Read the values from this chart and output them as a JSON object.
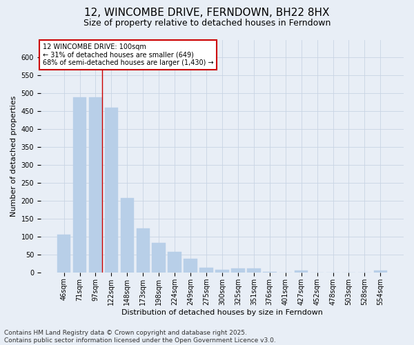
{
  "title": "12, WINCOMBE DRIVE, FERNDOWN, BH22 8HX",
  "subtitle": "Size of property relative to detached houses in Ferndown",
  "xlabel": "Distribution of detached houses by size in Ferndown",
  "ylabel": "Number of detached properties",
  "footer_line1": "Contains HM Land Registry data © Crown copyright and database right 2025.",
  "footer_line2": "Contains public sector information licensed under the Open Government Licence v3.0.",
  "categories": [
    "46sqm",
    "71sqm",
    "97sqm",
    "122sqm",
    "148sqm",
    "173sqm",
    "198sqm",
    "224sqm",
    "249sqm",
    "275sqm",
    "300sqm",
    "325sqm",
    "351sqm",
    "376sqm",
    "401sqm",
    "427sqm",
    "452sqm",
    "478sqm",
    "503sqm",
    "528sqm",
    "554sqm"
  ],
  "values": [
    105,
    490,
    490,
    460,
    207,
    123,
    82,
    57,
    38,
    13,
    8,
    11,
    11,
    2,
    0,
    5,
    0,
    0,
    0,
    0,
    5
  ],
  "bar_color": "#b8cfe8",
  "bar_edge_color": "#b8cfe8",
  "grid_color": "#c8d4e4",
  "background_color": "#e8eef6",
  "axes_background": "#e8eef6",
  "vline_color": "#cc0000",
  "annotation_text": "12 WINCOMBE DRIVE: 100sqm\n← 31% of detached houses are smaller (649)\n68% of semi-detached houses are larger (1,430) →",
  "annotation_box_color": "#cc0000",
  "ylim": [
    0,
    650
  ],
  "yticks": [
    0,
    50,
    100,
    150,
    200,
    250,
    300,
    350,
    400,
    450,
    500,
    550,
    600
  ],
  "title_fontsize": 11,
  "subtitle_fontsize": 9,
  "axis_label_fontsize": 8,
  "tick_fontsize": 7,
  "footer_fontsize": 6.5
}
